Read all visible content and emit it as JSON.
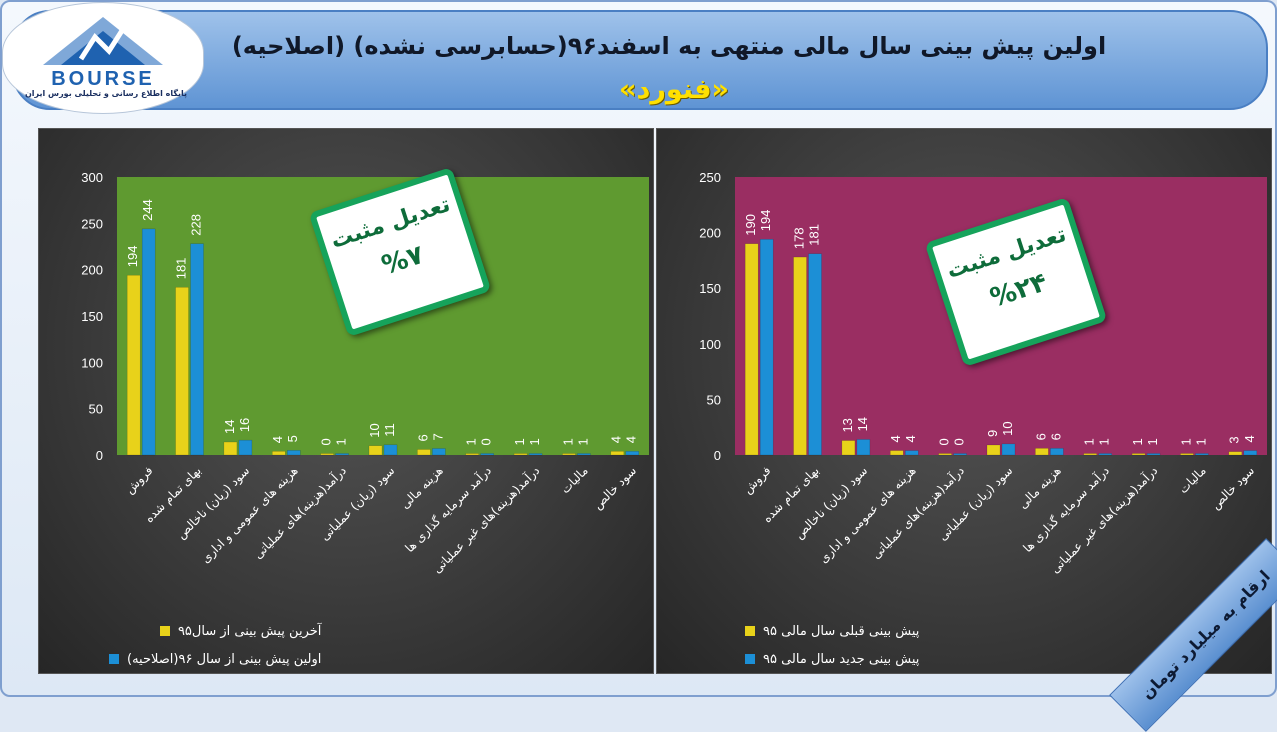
{
  "header": {
    "title": "اولین پیش بینی سال مالی منتهی به اسفند۹۶(حسابرسی نشده) (اصلاحیه)",
    "subtitle": "«فنورد»"
  },
  "logo": {
    "text": "BOURSE",
    "tagline": "پایگاه اطلاع رسانی و تحلیلی بورس ایران",
    "primary_color": "#1f62b0",
    "secondary_color": "#7fa8d8"
  },
  "units_ribbon": "ارقام به میلیارد تومان",
  "colors": {
    "gold": "#e8d21a",
    "blue": "#1c8fd6",
    "left_plot_bg": "#5f9a30",
    "right_plot_bg": "#9a2e62",
    "note_border": "#16a35b"
  },
  "chart_data": [
    {
      "type": "bar",
      "categories": [
        "فروش",
        "بهای تمام شده",
        "سود (زیان) ناخالص",
        "هزینه های عمومی و اداری",
        "درآمد(هزینه)های عملیاتی",
        "سود (زیان) عملیاتی",
        "هزینه مالی",
        "درآمد سرمایه گذاری ها",
        "درآمد(هزینه)های غیر عملیاتی",
        "مالیات",
        "سود خالص"
      ],
      "series": [
        {
          "name": "آخرین پیش بینی از سال۹۵",
          "values": [
            194,
            181,
            14,
            4,
            0,
            10,
            6,
            1,
            1,
            1,
            4
          ],
          "color": "#e8d21a"
        },
        {
          "name": "اولین پیش بینی از سال ۹۶(اصلاحیه)",
          "values": [
            244,
            228,
            16,
            5,
            1,
            11,
            7,
            0,
            1,
            1,
            4
          ],
          "color": "#1c8fd6"
        }
      ],
      "ylim": [
        0,
        300
      ],
      "yticks": [
        0,
        50,
        100,
        150,
        200,
        250,
        300
      ],
      "grid": false,
      "legend_position": "bottom",
      "note": {
        "label": "تعدیل مثبت",
        "value": "%۷"
      }
    },
    {
      "type": "bar",
      "categories": [
        "فروش",
        "بهای تمام شده",
        "سود (زیان) ناخالص",
        "هزینه های عمومی و اداری",
        "درآمد(هزینه)های عملیاتی",
        "سود (زیان) عملیاتی",
        "هزینه مالی",
        "درآمد سرمایه گذاری ها",
        "درآمد(هزینه)های غیر عملیاتی",
        "مالیات",
        "سود خالص"
      ],
      "series": [
        {
          "name": "پیش بینی قبلی سال مالی ۹۵",
          "values": [
            190,
            178,
            13,
            4,
            0,
            9,
            6,
            1,
            1,
            1,
            3
          ],
          "color": "#e8d21a"
        },
        {
          "name": "پیش بینی جدید سال مالی ۹۵",
          "values": [
            194,
            181,
            14,
            4,
            0,
            10,
            6,
            1,
            1,
            1,
            4
          ],
          "color": "#1c8fd6"
        }
      ],
      "ylim": [
        0,
        250
      ],
      "yticks": [
        0,
        50,
        100,
        150,
        200,
        250
      ],
      "grid": false,
      "legend_position": "bottom",
      "note": {
        "label": "تعدیل مثبت",
        "value": "%۲۴"
      }
    }
  ]
}
